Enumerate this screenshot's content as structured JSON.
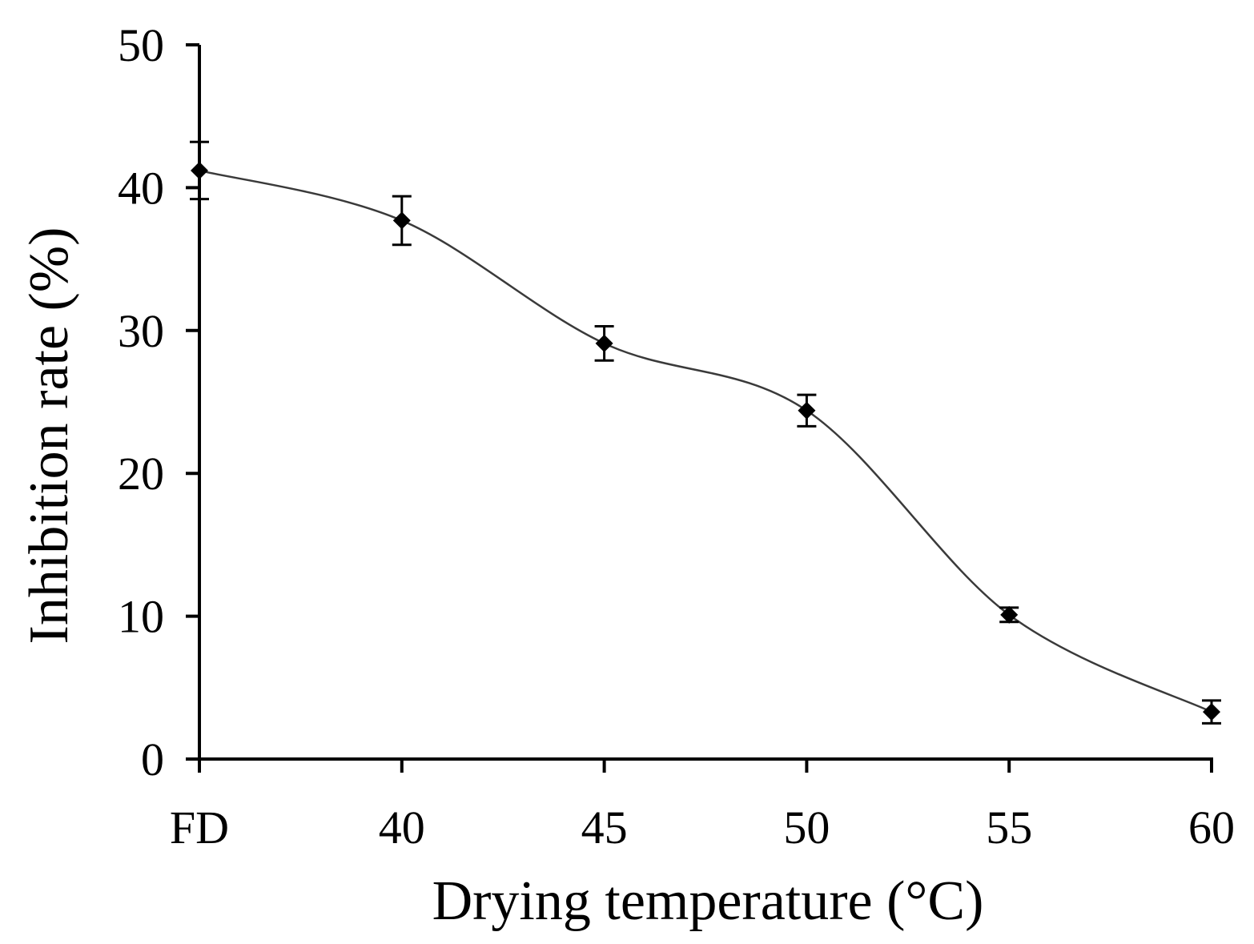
{
  "chart_data": {
    "type": "line",
    "title": "",
    "xlabel": "Drying temperature (°C)",
    "ylabel": "Inhibition rate (%)",
    "categories": [
      "FD",
      "40",
      "45",
      "50",
      "55",
      "60"
    ],
    "series": [
      {
        "name": "Inhibition rate",
        "values": [
          41.2,
          37.7,
          29.1,
          24.4,
          10.1,
          3.3
        ],
        "errors": [
          2.0,
          1.7,
          1.2,
          1.1,
          0.5,
          0.8
        ],
        "color": "#000000"
      }
    ],
    "ylim": [
      0,
      50
    ],
    "yticks": [
      "0",
      "10",
      "20",
      "30",
      "40",
      "50"
    ],
    "grid": false,
    "legend": "none",
    "line_style": "smooth"
  }
}
